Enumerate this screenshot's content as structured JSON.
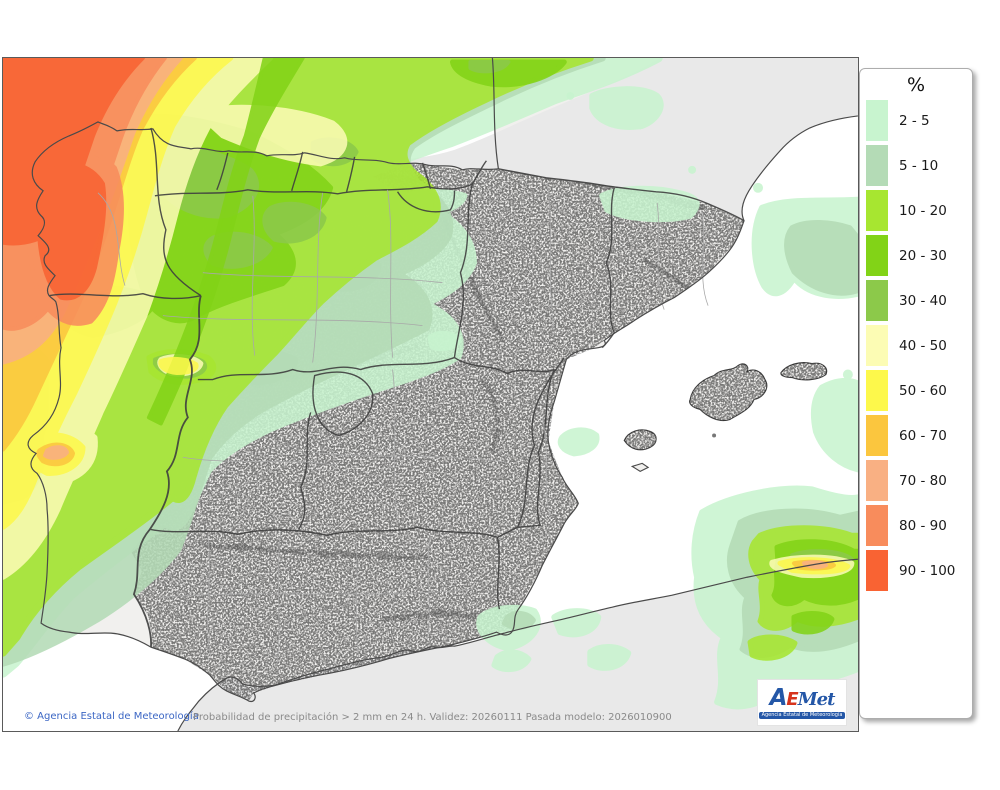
{
  "legend": {
    "title": "%",
    "items": [
      {
        "label": "2 - 5",
        "color": "#c8f4cf"
      },
      {
        "label": "5 - 10",
        "color": "#b4dbb6"
      },
      {
        "label": "10 - 20",
        "color": "#a7e630"
      },
      {
        "label": "20 - 30",
        "color": "#82d317"
      },
      {
        "label": "30 - 40",
        "color": "#8cc94a"
      },
      {
        "label": "40 - 50",
        "color": "#fcfcb4"
      },
      {
        "label": "50 - 60",
        "color": "#fdf84b"
      },
      {
        "label": "60 - 70",
        "color": "#fbc63e"
      },
      {
        "label": "70 - 80",
        "color": "#f9b083"
      },
      {
        "label": "80 - 90",
        "color": "#f88c5c"
      },
      {
        "label": "90 - 100",
        "color": "#f96333"
      }
    ]
  },
  "footer": {
    "copyright": "© Agencia Estatal de Meteorología",
    "caption": "Probabilidad de precipitación > 2 mm en 24 h. Validez: 20260111 Pasada modelo: 2026010900"
  },
  "logo": {
    "a": "A",
    "e": "E",
    "met": "Met",
    "subtitle": "Agencia Estatal de Meteorología"
  },
  "colors": {
    "sea": "#ffffff",
    "outside_land": "#e9e9e9",
    "land": "#f1f0ee",
    "coast": "#4a4a4a",
    "region_border": "#3f3f3f",
    "province_border": "#a8a8a8"
  }
}
